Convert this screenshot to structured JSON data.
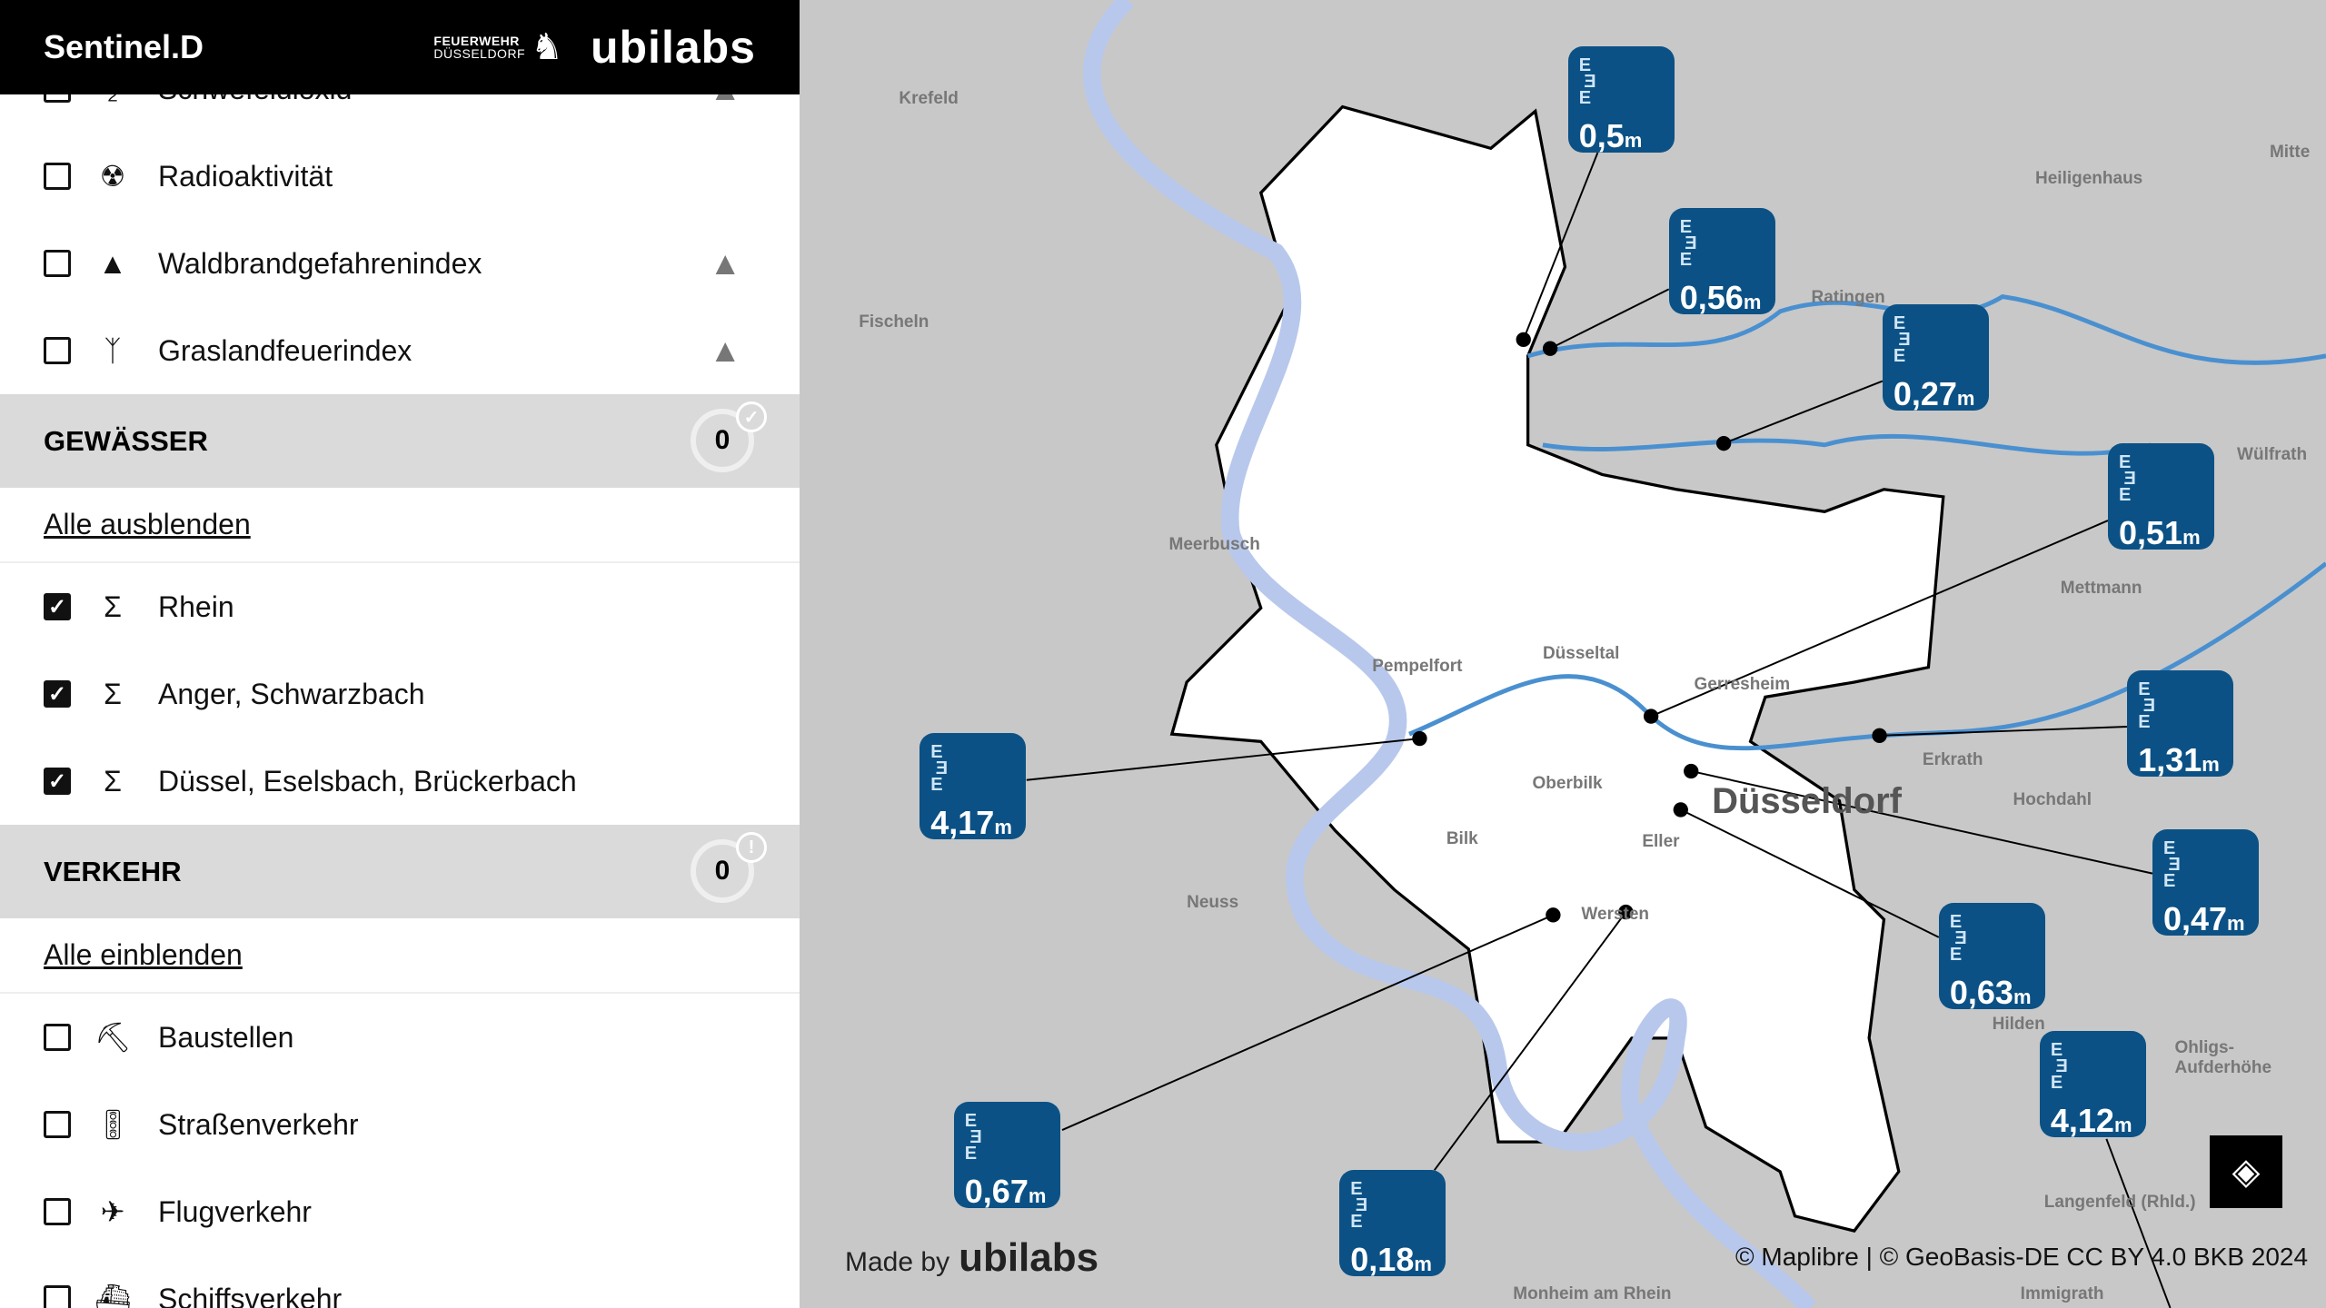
{
  "header": {
    "title": "Sentinel.D",
    "partner_line1": "FEUERWEHR",
    "partner_line2": "DÜSSELDORF",
    "brand": "ubilabs"
  },
  "top_items": [
    {
      "label": "Schwefeldioxid",
      "icon": "so2-icon",
      "checked": false,
      "warning": true
    },
    {
      "label": "Radioaktivität",
      "icon": "radiation-icon",
      "checked": false,
      "warning": false
    },
    {
      "label": "Waldbrandgefahrenindex",
      "icon": "forest-icon",
      "checked": false,
      "warning": true
    },
    {
      "label": "Graslandfeuerindex",
      "icon": "grass-icon",
      "checked": false,
      "warning": true
    }
  ],
  "gewaesser": {
    "title": "GEWÄSSER",
    "count": "0",
    "status": "check-icon",
    "toggle": "Alle ausblenden",
    "items": [
      {
        "label": "Rhein",
        "checked": true
      },
      {
        "label": "Anger, Schwarzbach",
        "checked": true
      },
      {
        "label": "Düssel, Eselsbach, Brückerbach",
        "checked": true
      }
    ]
  },
  "verkehr": {
    "title": "VERKEHR",
    "count": "0",
    "status": "alert-icon",
    "toggle": "Alle einblenden",
    "items": [
      {
        "label": "Baustellen",
        "icon": "construction-icon",
        "checked": false
      },
      {
        "label": "Straßenverkehr",
        "icon": "traffic-light-icon",
        "checked": false
      },
      {
        "label": "Flugverkehr",
        "icon": "airplane-icon",
        "checked": false
      },
      {
        "label": "Schiffsverkehr",
        "icon": "ship-icon",
        "checked": false
      }
    ]
  },
  "map": {
    "gauges": [
      {
        "value": "0,5",
        "unit": "m"
      },
      {
        "value": "0,56",
        "unit": "m"
      },
      {
        "value": "0,27",
        "unit": "m"
      },
      {
        "value": "0,51",
        "unit": "m"
      },
      {
        "value": "1,31",
        "unit": "m"
      },
      {
        "value": "0,47",
        "unit": "m"
      },
      {
        "value": "0,63",
        "unit": "m"
      },
      {
        "value": "4,12",
        "unit": "m"
      },
      {
        "value": "0,18",
        "unit": "m"
      },
      {
        "value": "0,67",
        "unit": "m"
      },
      {
        "value": "4,17",
        "unit": "m"
      }
    ],
    "places": [
      "Krefeld",
      "Heiligenhaus",
      "Mettmann",
      "Wülfrath",
      "Fischeln",
      "Meerbusch",
      "Ratingen",
      "Pempelfort",
      "Düsseltal",
      "Gerresheim",
      "Oberbilk",
      "Düsseldorf",
      "Erkrath",
      "Hochdahl",
      "Bilk",
      "Eller",
      "Wersten",
      "Neuss",
      "Hilden",
      "Ohligs-Aufderhöhe",
      "Langenfeld (Rhld.)",
      "Monheim am Rhein",
      "Immigrath",
      "Mitte"
    ],
    "made_by": "Made by",
    "made_by_brand": "ubilabs",
    "attribution": "© Maplibre | © GeoBasis-DE CC BY 4.0 BKB 2024",
    "colors": {
      "gauge": "#0b5185",
      "river": "#4a90d0",
      "rhine": "#b8c8ec",
      "city": "#ffffff"
    }
  }
}
